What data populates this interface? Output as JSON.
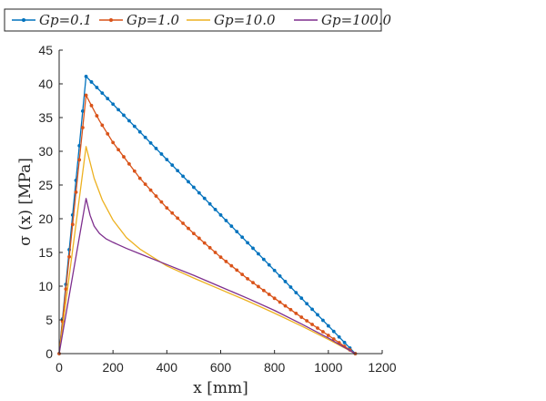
{
  "chart_data": {
    "type": "line",
    "xlabel": "x [mm]",
    "ylabel": "σ (x) [MPa]",
    "xlim": [
      0,
      1200
    ],
    "ylim": [
      0,
      45
    ],
    "xticks": [
      0,
      200,
      400,
      600,
      800,
      1000,
      1200
    ],
    "yticks": [
      0,
      5,
      10,
      15,
      20,
      25,
      30,
      35,
      40,
      45
    ],
    "grid": false,
    "legend_position": "top",
    "series": [
      {
        "name": "Gp=0.1",
        "color": "#0072BD",
        "markers": true,
        "x": [
          0,
          100,
          1100
        ],
        "y": [
          0,
          41.1,
          0
        ]
      },
      {
        "name": "Gp=1.0",
        "color": "#D95319",
        "markers": true,
        "x": [
          0,
          100,
          150,
          200,
          300,
          400,
          500,
          600,
          700,
          800,
          900,
          1000,
          1100
        ],
        "y": [
          0,
          38.3,
          34.5,
          31.3,
          26.0,
          21.6,
          17.8,
          14.3,
          11.1,
          8.2,
          5.4,
          2.7,
          0
        ]
      },
      {
        "name": "Gp=10.0",
        "color": "#EDB120",
        "markers": false,
        "x": [
          0,
          100,
          130,
          160,
          200,
          250,
          300,
          400,
          500,
          600,
          700,
          800,
          900,
          1000,
          1100
        ],
        "y": [
          0,
          30.7,
          26.0,
          22.8,
          19.8,
          17.2,
          15.5,
          13.0,
          11.2,
          9.5,
          7.8,
          6.0,
          4.1,
          2.1,
          0
        ]
      },
      {
        "name": "Gp=100.0",
        "color": "#7E2F8E",
        "markers": false,
        "x": [
          0,
          100,
          115,
          130,
          150,
          175,
          200,
          250,
          300,
          400,
          500,
          600,
          700,
          800,
          900,
          1000,
          1100
        ],
        "y": [
          0,
          23.0,
          20.5,
          18.9,
          17.8,
          17.0,
          16.5,
          15.6,
          14.8,
          13.2,
          11.6,
          9.9,
          8.2,
          6.4,
          4.4,
          2.3,
          0
        ]
      }
    ]
  }
}
